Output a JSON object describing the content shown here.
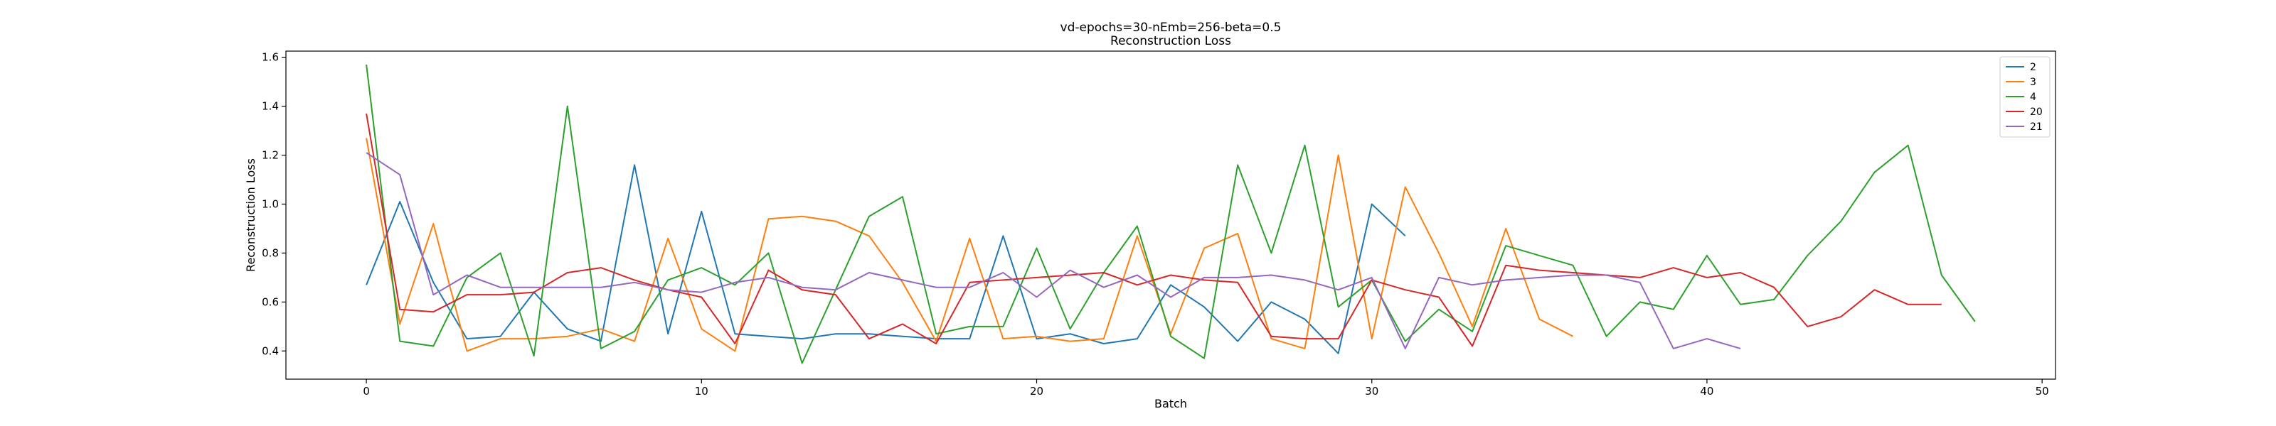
{
  "chart_data": {
    "type": "line",
    "title": "vd-epochs=30-nEmb=256-beta=0.5",
    "subtitle": "Reconstruction Loss",
    "xlabel": "Batch",
    "ylabel": "Reconstruction Loss",
    "xlim": [
      -2.4,
      50.4
    ],
    "ylim": [
      0.285,
      1.625
    ],
    "xticks": [
      0,
      10,
      20,
      30,
      40,
      50
    ],
    "yticks": [
      0.4,
      0.6,
      0.8,
      1.0,
      1.2,
      1.4,
      1.6
    ],
    "xtick_labels": [
      "0",
      "10",
      "20",
      "30",
      "40",
      "50"
    ],
    "ytick_labels": [
      "0.4",
      "0.6",
      "0.8",
      "1.0",
      "1.2",
      "1.4",
      "1.6"
    ],
    "grid": false,
    "legend_position": "top-right",
    "series": [
      {
        "name": "2",
        "color": "#1f77b4",
        "x": [
          0,
          1,
          2,
          3,
          4,
          5,
          6,
          7,
          8,
          9,
          10,
          11,
          12,
          13,
          14,
          15,
          16,
          17,
          18,
          19,
          20,
          21,
          22,
          23,
          24,
          25,
          26,
          27,
          28,
          29,
          30,
          31
        ],
        "y": [
          0.67,
          1.01,
          0.68,
          0.45,
          0.46,
          0.64,
          0.49,
          0.44,
          1.16,
          0.47,
          0.97,
          0.47,
          0.46,
          0.45,
          0.47,
          0.47,
          0.46,
          0.45,
          0.45,
          0.87,
          0.45,
          0.47,
          0.43,
          0.45,
          0.67,
          0.58,
          0.44,
          0.6,
          0.53,
          0.39,
          1.0,
          0.87
        ]
      },
      {
        "name": "3",
        "color": "#ff7f0e",
        "x": [
          0,
          1,
          2,
          3,
          4,
          5,
          6,
          7,
          8,
          9,
          10,
          11,
          12,
          13,
          14,
          15,
          16,
          17,
          18,
          19,
          20,
          21,
          22,
          23,
          24,
          25,
          26,
          27,
          28,
          29,
          30,
          31,
          32,
          33,
          34,
          35,
          36
        ],
        "y": [
          1.27,
          0.51,
          0.92,
          0.4,
          0.45,
          0.45,
          0.46,
          0.49,
          0.44,
          0.86,
          0.49,
          0.4,
          0.94,
          0.95,
          0.93,
          0.87,
          0.68,
          0.44,
          0.86,
          0.45,
          0.46,
          0.44,
          0.45,
          0.87,
          0.47,
          0.82,
          0.88,
          0.45,
          0.41,
          1.2,
          0.45,
          1.07,
          0.8,
          0.5,
          0.9,
          0.53,
          0.46
        ]
      },
      {
        "name": "4",
        "color": "#2ca02c",
        "x": [
          0,
          1,
          2,
          3,
          4,
          5,
          6,
          7,
          8,
          9,
          10,
          11,
          12,
          13,
          14,
          15,
          16,
          17,
          18,
          19,
          20,
          21,
          22,
          23,
          24,
          25,
          26,
          27,
          28,
          29,
          30,
          31,
          32,
          33,
          34,
          35,
          36,
          37,
          38,
          39,
          40,
          41,
          42,
          43,
          44,
          45,
          46,
          47,
          48
        ],
        "y": [
          1.57,
          0.44,
          0.42,
          0.7,
          0.8,
          0.38,
          1.4,
          0.41,
          0.48,
          0.69,
          0.74,
          0.67,
          0.8,
          0.35,
          0.65,
          0.95,
          1.03,
          0.47,
          0.5,
          0.5,
          0.82,
          0.49,
          0.72,
          0.91,
          0.46,
          0.37,
          1.16,
          0.8,
          1.24,
          0.58,
          0.69,
          0.44,
          0.57,
          0.48,
          0.83,
          0.79,
          0.75,
          0.46,
          0.6,
          0.57,
          0.79,
          0.59,
          0.61,
          0.79,
          0.93,
          1.13,
          1.24,
          0.71,
          0.52
        ]
      },
      {
        "name": "20",
        "color": "#d62728",
        "x": [
          0,
          1,
          2,
          3,
          4,
          5,
          6,
          7,
          8,
          9,
          10,
          11,
          12,
          13,
          14,
          15,
          16,
          17,
          18,
          19,
          20,
          21,
          22,
          23,
          24,
          25,
          26,
          27,
          28,
          29,
          30,
          31,
          32,
          33,
          34,
          35,
          36,
          37,
          38,
          39,
          40,
          41,
          42,
          43,
          44,
          45,
          46,
          47
        ],
        "y": [
          1.37,
          0.57,
          0.56,
          0.63,
          0.63,
          0.64,
          0.72,
          0.74,
          0.69,
          0.65,
          0.62,
          0.43,
          0.73,
          0.65,
          0.63,
          0.45,
          0.51,
          0.43,
          0.68,
          0.69,
          0.7,
          0.71,
          0.72,
          0.67,
          0.71,
          0.69,
          0.68,
          0.46,
          0.45,
          0.45,
          0.69,
          0.65,
          0.62,
          0.42,
          0.75,
          0.73,
          0.72,
          0.71,
          0.7,
          0.74,
          0.7,
          0.72,
          0.66,
          0.5,
          0.54,
          0.65,
          0.59,
          0.59
        ]
      },
      {
        "name": "21",
        "color": "#9467bd",
        "x": [
          0,
          1,
          2,
          3,
          4,
          5,
          6,
          7,
          8,
          9,
          10,
          11,
          12,
          13,
          14,
          15,
          16,
          17,
          18,
          19,
          20,
          21,
          22,
          23,
          24,
          25,
          26,
          27,
          28,
          29,
          30,
          31,
          32,
          33,
          34,
          35,
          36,
          37,
          38,
          39,
          40,
          41
        ],
        "y": [
          1.21,
          1.12,
          0.63,
          0.71,
          0.66,
          0.66,
          0.66,
          0.66,
          0.68,
          0.65,
          0.64,
          0.68,
          0.7,
          0.66,
          0.65,
          0.72,
          0.69,
          0.66,
          0.66,
          0.72,
          0.62,
          0.73,
          0.66,
          0.71,
          0.62,
          0.7,
          0.7,
          0.71,
          0.69,
          0.65,
          0.7,
          0.41,
          0.7,
          0.67,
          0.69,
          0.7,
          0.71,
          0.71,
          0.68,
          0.41,
          0.45,
          0.41
        ]
      }
    ]
  }
}
